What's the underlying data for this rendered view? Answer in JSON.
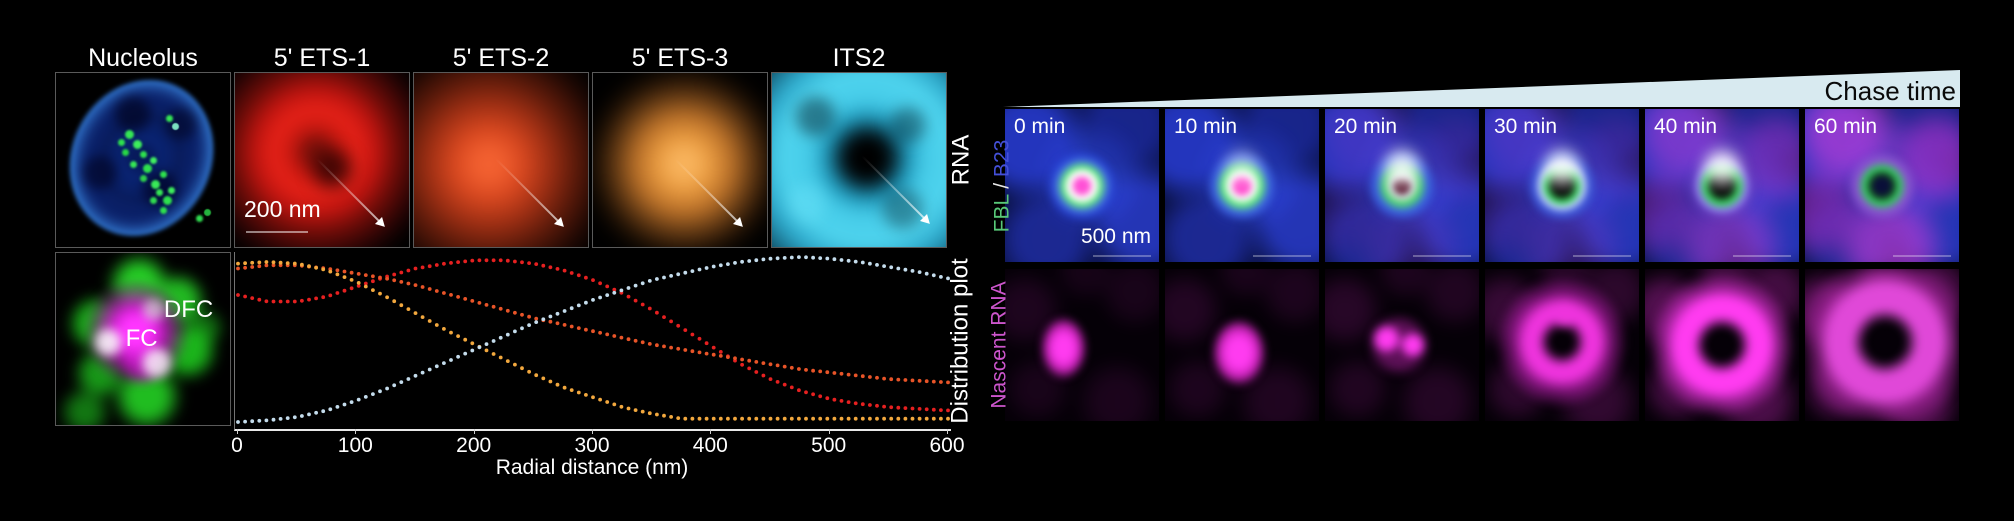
{
  "left_panel": {
    "titles": [
      "Nucleolus",
      "5' ETS-1",
      "5' ETS-2",
      "5' ETS-3",
      "ITS2"
    ],
    "row_label_top": "RNA",
    "scale_bar": "200 nm",
    "annotations": {
      "dfc": "DFC",
      "fc": "FC"
    }
  },
  "chart_data": {
    "type": "scatter",
    "title": "",
    "xlabel": "Radial distance (nm)",
    "ylabel": "Distribution plot",
    "xlim": [
      0,
      600
    ],
    "xticks": [
      0,
      100,
      200,
      300,
      400,
      500,
      600
    ],
    "grid": false,
    "legend_position": "none",
    "x_start": 0,
    "x_step": 25,
    "series": [
      {
        "name": "5' ETS-1",
        "color": "#e62020",
        "values": [
          0.77,
          0.73,
          0.73,
          0.76,
          0.82,
          0.88,
          0.93,
          0.96,
          0.98,
          0.98,
          0.96,
          0.92,
          0.86,
          0.78,
          0.68,
          0.57,
          0.46,
          0.35,
          0.26,
          0.19,
          0.14,
          0.11,
          0.09,
          0.08,
          0.07
        ]
      },
      {
        "name": "5' ETS-2",
        "color": "#e85428",
        "values": [
          0.93,
          0.95,
          0.95,
          0.93,
          0.9,
          0.87,
          0.83,
          0.78,
          0.73,
          0.68,
          0.63,
          0.59,
          0.55,
          0.51,
          0.47,
          0.44,
          0.41,
          0.38,
          0.35,
          0.32,
          0.3,
          0.28,
          0.26,
          0.25,
          0.24
        ]
      },
      {
        "name": "5' ETS-3",
        "color": "#f2a83e",
        "values": [
          0.96,
          0.97,
          0.96,
          0.92,
          0.85,
          0.76,
          0.66,
          0.56,
          0.47,
          0.38,
          0.29,
          0.21,
          0.15,
          0.09,
          0.05,
          0.02,
          0.02,
          0.02,
          0.02,
          0.02,
          0.02,
          0.02,
          0.02,
          0.02,
          0.02
        ]
      },
      {
        "name": "ITS2",
        "color": "#c4dcec",
        "values": [
          0.0,
          0.01,
          0.03,
          0.07,
          0.13,
          0.2,
          0.28,
          0.36,
          0.44,
          0.52,
          0.6,
          0.67,
          0.74,
          0.8,
          0.86,
          0.9,
          0.94,
          0.97,
          0.99,
          1.0,
          0.99,
          0.97,
          0.94,
          0.91,
          0.87
        ]
      }
    ]
  },
  "right_panel": {
    "chase_label": "Chase time",
    "times": [
      "0 min",
      "10 min",
      "20 min",
      "30 min",
      "40 min",
      "60 min"
    ],
    "scale_bar": "500 nm",
    "row1_label": {
      "fbl": "FBL",
      "sep": " / ",
      "b23": "B23"
    },
    "row2_label": "Nascent RNA",
    "colors": {
      "fbl": "#58c878",
      "b23": "#4450d8",
      "nascent_rna": "#cc55cc",
      "wedge": "#d8eaf0"
    }
  }
}
